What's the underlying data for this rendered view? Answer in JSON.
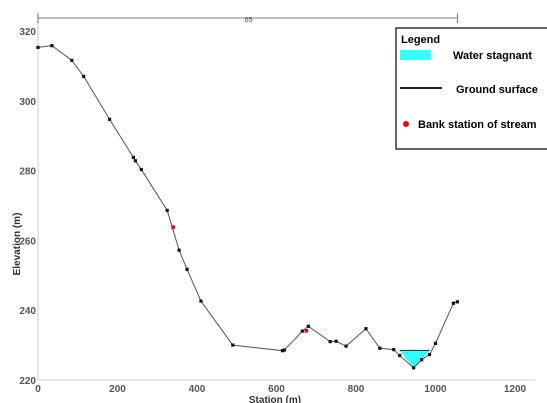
{
  "chart_data": {
    "type": "line",
    "xlabel": "Station (m)",
    "ylabel": "Elevation (m)",
    "xlim": [
      0,
      1200
    ],
    "ylim": [
      220,
      320
    ],
    "xticks": [
      "0",
      "200",
      "400",
      "600",
      "800",
      "1000",
      "1200"
    ],
    "yticks": [
      "220",
      "240",
      "260",
      "280",
      "300",
      "320"
    ],
    "dimension": {
      "label": ".65",
      "from_x": 0,
      "to_x": 1055
    },
    "series": [
      {
        "name": "Ground surface",
        "color": "#555555",
        "points": [
          [
            0,
            315.3
          ],
          [
            35,
            315.8
          ],
          [
            85,
            311.6
          ],
          [
            115,
            307.0
          ],
          [
            180,
            294.7
          ],
          [
            240,
            283.8
          ],
          [
            245,
            282.8
          ],
          [
            260,
            280.3
          ],
          [
            325,
            268.6
          ],
          [
            355,
            257.2
          ],
          [
            375,
            251.7
          ],
          [
            410,
            242.6
          ],
          [
            490,
            230.0
          ],
          [
            615,
            228.4
          ],
          [
            620,
            228.6
          ],
          [
            665,
            234.0
          ],
          [
            680,
            235.4
          ],
          [
            735,
            231.0
          ],
          [
            750,
            231.1
          ],
          [
            775,
            229.7
          ],
          [
            825,
            234.7
          ],
          [
            860,
            229.1
          ],
          [
            895,
            228.7
          ],
          [
            910,
            227.0
          ],
          [
            945,
            223.5
          ],
          [
            965,
            225.8
          ],
          [
            985,
            227.3
          ],
          [
            1000,
            230.5
          ],
          [
            1045,
            242.0
          ],
          [
            1055,
            242.4
          ]
        ]
      }
    ],
    "bank_stations": [
      [
        340,
        263.8
      ],
      [
        675,
        234.1
      ]
    ],
    "water": {
      "name": "Water stagnant",
      "color": "#33ffff",
      "surface_elevation": 228.5,
      "x_range": [
        900,
        990
      ]
    },
    "legend": {
      "title": "Legend",
      "placement": "top-right",
      "items": [
        {
          "label": "Water stagnant",
          "symbol": "fill",
          "color": "#33ffff"
        },
        {
          "label": "Ground surface",
          "symbol": "line",
          "color": "#000000"
        },
        {
          "label": "Bank station of stream",
          "symbol": "dot",
          "color": "#ff0000"
        }
      ]
    }
  }
}
